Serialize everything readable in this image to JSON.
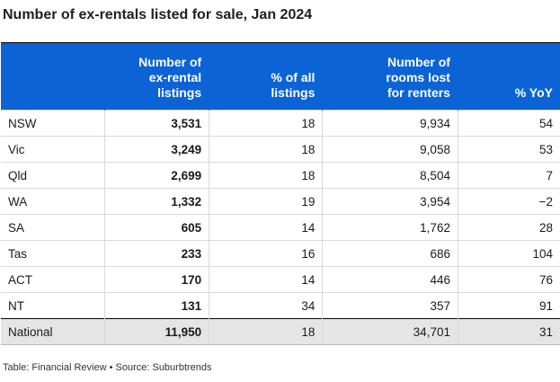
{
  "title": "Number of ex-rentals listed for sale, Jan 2024",
  "footer": "Table: Financial Review • Source: Suburbtrends",
  "chart_data": {
    "type": "table",
    "title": "Number of ex-rentals listed for sale, Jan 2024",
    "columns": [
      "",
      "Number of ex-rental listings",
      "% of all listings",
      "Number of rooms lost for renters",
      "% YoY"
    ],
    "header_lines": [
      [
        ""
      ],
      [
        "Number of",
        "ex-rental",
        "listings"
      ],
      [
        "% of all",
        "listings"
      ],
      [
        "Number of",
        "rooms lost",
        "for renters"
      ],
      [
        "% YoY"
      ]
    ],
    "rows": [
      [
        "NSW",
        "3,531",
        "18",
        "9,934",
        "54"
      ],
      [
        "Vic",
        "3,249",
        "18",
        "9,058",
        "53"
      ],
      [
        "Qld",
        "2,699",
        "18",
        "8,504",
        "7"
      ],
      [
        "WA",
        "1,332",
        "19",
        "3,954",
        "−2"
      ],
      [
        "SA",
        "605",
        "14",
        "1,762",
        "28"
      ],
      [
        "Tas",
        "233",
        "16",
        "686",
        "104"
      ],
      [
        "ACT",
        "170",
        "14",
        "446",
        "76"
      ],
      [
        "NT",
        "131",
        "34",
        "357",
        "91"
      ],
      [
        "National",
        "11,950",
        "18",
        "34,701",
        "31"
      ]
    ],
    "total_row_index": 8,
    "bold_column_index": 1,
    "colors": {
      "header_bg": "#0b63d6",
      "header_text": "#ffffff",
      "total_row_bg": "#e5e5e5"
    }
  }
}
